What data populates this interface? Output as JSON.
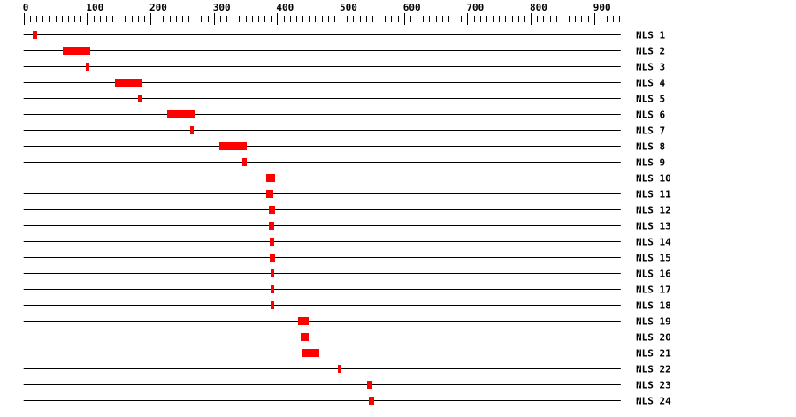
{
  "ruler": {
    "tick_labels": [
      "0",
      "100",
      "200",
      "300",
      "400",
      "500",
      "600",
      "700",
      "800",
      "900"
    ],
    "min": 0,
    "max": 942,
    "major_step": 100,
    "minor_step": 10
  },
  "colors": {
    "region": "#ff0000",
    "line": "#000000"
  },
  "tracks": [
    {
      "label": "NLS 1",
      "start": 15,
      "end": 21
    },
    {
      "label": "NLS 2",
      "start": 62,
      "end": 105
    },
    {
      "label": "NLS 3",
      "start": 98,
      "end": 104
    },
    {
      "label": "NLS 4",
      "start": 144,
      "end": 187
    },
    {
      "label": "NLS 5",
      "start": 180,
      "end": 186
    },
    {
      "label": "NLS 6",
      "start": 226,
      "end": 270
    },
    {
      "label": "NLS 7",
      "start": 263,
      "end": 268
    },
    {
      "label": "NLS 8",
      "start": 309,
      "end": 352
    },
    {
      "label": "NLS 9",
      "start": 345,
      "end": 352
    },
    {
      "label": "NLS 10",
      "start": 383,
      "end": 397
    },
    {
      "label": "NLS 11",
      "start": 383,
      "end": 394
    },
    {
      "label": "NLS 12",
      "start": 387,
      "end": 397
    },
    {
      "label": "NLS 13",
      "start": 387,
      "end": 395
    },
    {
      "label": "NLS 14",
      "start": 388,
      "end": 395
    },
    {
      "label": "NLS 15",
      "start": 388,
      "end": 397
    },
    {
      "label": "NLS 16",
      "start": 390,
      "end": 395
    },
    {
      "label": "NLS 17",
      "start": 390,
      "end": 395
    },
    {
      "label": "NLS 18",
      "start": 390,
      "end": 395
    },
    {
      "label": "NLS 19",
      "start": 433,
      "end": 450
    },
    {
      "label": "NLS 20",
      "start": 437,
      "end": 450
    },
    {
      "label": "NLS 21",
      "start": 439,
      "end": 466
    },
    {
      "label": "NLS 22",
      "start": 496,
      "end": 501
    },
    {
      "label": "NLS 23",
      "start": 542,
      "end": 550
    },
    {
      "label": "NLS 24",
      "start": 545,
      "end": 553
    }
  ]
}
